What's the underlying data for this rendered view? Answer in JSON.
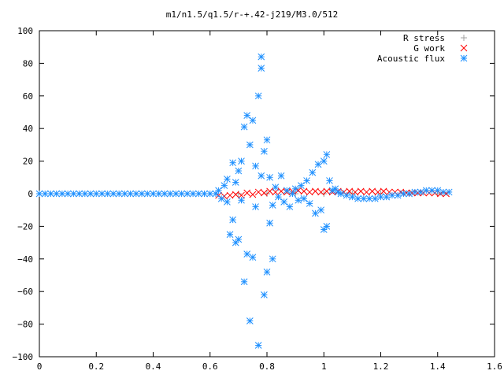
{
  "chart_data": {
    "type": "scatter",
    "title": "m1/n1.5/q1.5/r-+.42-j219/M3.0/512",
    "xlabel": "",
    "ylabel": "",
    "xlim": [
      0,
      1.6
    ],
    "ylim": [
      -100,
      100
    ],
    "grid": false,
    "legend_position": "top-right",
    "x_ticks": [
      "0",
      "0.2",
      "0.4",
      "0.6",
      "0.8",
      "1",
      "1.2",
      "1.4",
      "1.6"
    ],
    "y_ticks": [
      "100",
      "80",
      "60",
      "40",
      "20",
      "0",
      "−20",
      "−40",
      "−60",
      "−80",
      "−100"
    ],
    "series": [
      {
        "name": "R stress",
        "marker": "plus",
        "color": "#a0a0a0",
        "x": [
          0.62,
          0.7,
          0.8,
          0.9,
          1.0,
          1.1,
          1.2,
          1.3,
          1.4
        ],
        "y": [
          0,
          0,
          0,
          0,
          0,
          0,
          0,
          0,
          0
        ]
      },
      {
        "name": "G work",
        "marker": "cross",
        "color": "#ff0000",
        "x": [
          0.63,
          0.65,
          0.67,
          0.69,
          0.71,
          0.73,
          0.75,
          0.77,
          0.79,
          0.81,
          0.83,
          0.85,
          0.87,
          0.89,
          0.91,
          0.93,
          0.95,
          0.97,
          0.99,
          1.01,
          1.03,
          1.05,
          1.07,
          1.09,
          1.11,
          1.13,
          1.15,
          1.17,
          1.19,
          1.21,
          1.23,
          1.25,
          1.27,
          1.29,
          1.31,
          1.33,
          1.35,
          1.37,
          1.39,
          1.41,
          1.43
        ],
        "y": [
          -1,
          -1.5,
          -1,
          -0.5,
          -1,
          0.5,
          -0.5,
          1,
          0.5,
          1.5,
          1,
          1.5,
          1,
          1.5,
          2,
          1.5,
          1,
          1.5,
          1,
          1.5,
          1,
          1.5,
          1,
          1.5,
          1,
          1.5,
          1,
          1.5,
          1,
          1.5,
          1,
          1,
          1,
          0.5,
          0.5,
          0.5,
          0.5,
          0.5,
          0.5,
          0,
          0
        ]
      },
      {
        "name": "Acoustic flux",
        "marker": "star",
        "color": "#1e90ff",
        "x": [
          0.0,
          0.02,
          0.04,
          0.06,
          0.08,
          0.1,
          0.12,
          0.14,
          0.16,
          0.18,
          0.2,
          0.22,
          0.24,
          0.26,
          0.28,
          0.3,
          0.32,
          0.34,
          0.36,
          0.38,
          0.4,
          0.42,
          0.44,
          0.46,
          0.48,
          0.5,
          0.52,
          0.54,
          0.56,
          0.58,
          0.6,
          0.62,
          0.63,
          0.64,
          0.65,
          0.66,
          0.66,
          0.67,
          0.68,
          0.68,
          0.69,
          0.69,
          0.7,
          0.7,
          0.71,
          0.71,
          0.72,
          0.72,
          0.73,
          0.73,
          0.74,
          0.74,
          0.75,
          0.75,
          0.76,
          0.76,
          0.77,
          0.77,
          0.78,
          0.78,
          0.78,
          0.79,
          0.79,
          0.8,
          0.8,
          0.81,
          0.81,
          0.82,
          0.82,
          0.83,
          0.84,
          0.85,
          0.86,
          0.87,
          0.88,
          0.89,
          0.9,
          0.91,
          0.92,
          0.93,
          0.94,
          0.95,
          0.96,
          0.97,
          0.98,
          0.99,
          1.0,
          1.0,
          1.01,
          1.01,
          1.02,
          1.03,
          1.04,
          1.05,
          1.06,
          1.08,
          1.1,
          1.12,
          1.14,
          1.16,
          1.18,
          1.2,
          1.22,
          1.24,
          1.26,
          1.28,
          1.3,
          1.32,
          1.34,
          1.36,
          1.38,
          1.4,
          1.42,
          1.44
        ],
        "y": [
          0,
          0,
          0,
          0,
          0,
          0,
          0,
          0,
          0,
          0,
          0,
          0,
          0,
          0,
          0,
          0,
          0,
          0,
          0,
          0,
          0,
          0,
          0,
          0,
          0,
          0,
          0,
          0,
          0,
          0,
          0,
          0,
          2,
          -3,
          5,
          -5,
          9,
          -25,
          19,
          -16,
          7,
          -30,
          14,
          -28,
          20,
          -4,
          41,
          -54,
          48,
          -37,
          30,
          -78,
          45,
          -39,
          17,
          -8,
          60,
          -93,
          84,
          77,
          11,
          -62,
          26,
          -48,
          33,
          -18,
          10,
          -40,
          -7,
          4,
          -2,
          11,
          -5,
          2,
          -8,
          0,
          3,
          -4,
          5,
          -3,
          8,
          -6,
          13,
          -12,
          18,
          -10,
          20,
          -22,
          24,
          -20,
          8,
          2,
          3,
          1,
          0,
          -1,
          -2,
          -3,
          -3,
          -3,
          -3,
          -2,
          -2,
          -1,
          -1,
          0,
          0,
          1,
          1,
          2,
          2,
          2,
          1,
          1
        ]
      }
    ]
  }
}
